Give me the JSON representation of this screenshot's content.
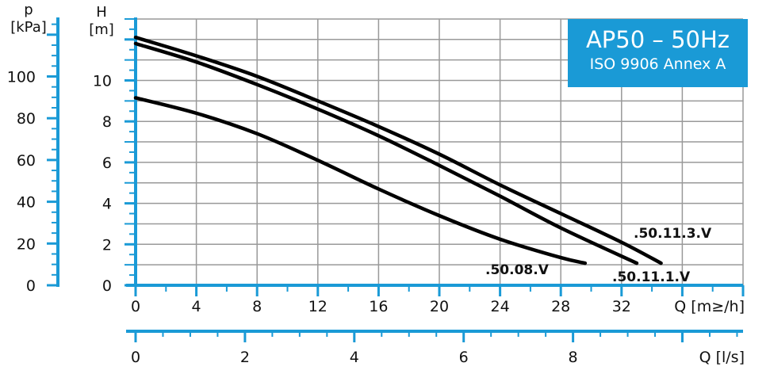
{
  "chart_data": {
    "type": "line",
    "title": "AP50 – 50Hz",
    "subtitle": "ISO 9906 Annex A",
    "xlabel": "Q [m³/h]",
    "xlabel_printed": "Q [m≥/h]",
    "x2label": "Q [l/s]",
    "ylabel_letter": "H",
    "ylabel_unit": "[m]",
    "y2label_letter": "p",
    "y2label_unit": "[kPa]",
    "xlim": [
      0,
      40
    ],
    "ylim": [
      0,
      13
    ],
    "x_ticks": [
      "0",
      "4",
      "8",
      "12",
      "16",
      "20",
      "24",
      "28",
      "32"
    ],
    "x2_ticks": [
      "0",
      "2",
      "4",
      "6",
      "8"
    ],
    "y_ticks": [
      "0",
      "2",
      "4",
      "6",
      "8",
      "10"
    ],
    "y2_ticks": [
      "0",
      "20",
      "40",
      "60",
      "80",
      "100"
    ],
    "grid": true,
    "colors": {
      "axis": "#1a9ad6",
      "grid": "#999999",
      "curve": "#000000",
      "title_box": "#1a9ad6"
    },
    "series": [
      {
        "name": ".50.11.3.V",
        "x": [
          0,
          4,
          8,
          12,
          16,
          20,
          24,
          28,
          32,
          34.6
        ],
        "y": [
          12.1,
          11.2,
          10.2,
          9.0,
          7.75,
          6.4,
          4.9,
          3.5,
          2.1,
          1.08
        ]
      },
      {
        "name": ".50.11.1.V",
        "x": [
          0,
          4,
          8,
          12,
          16,
          20,
          24,
          28,
          33.0
        ],
        "y": [
          11.8,
          10.9,
          9.8,
          8.6,
          7.3,
          5.85,
          4.35,
          2.8,
          1.08
        ]
      },
      {
        "name": ".50.08.V",
        "x": [
          0,
          4,
          8,
          12,
          16,
          20,
          24,
          28,
          29.6
        ],
        "y": [
          9.15,
          8.4,
          7.4,
          6.1,
          4.7,
          3.4,
          2.25,
          1.35,
          1.08
        ]
      }
    ]
  }
}
